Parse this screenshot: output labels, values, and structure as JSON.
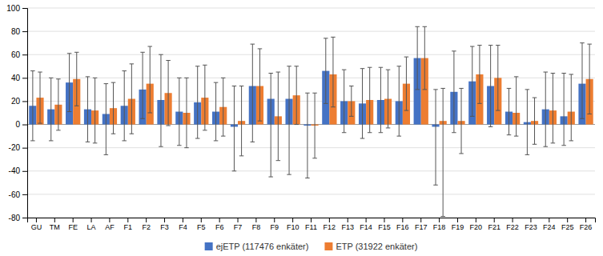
{
  "chart_data": {
    "type": "bar",
    "categories": [
      "GU",
      "TM",
      "FE",
      "LA",
      "AF",
      "F1",
      "F2",
      "F3",
      "F4",
      "F5",
      "F6",
      "F7",
      "F8",
      "F9",
      "F10",
      "F11",
      "F12",
      "F13",
      "F14",
      "F15",
      "F16",
      "F17",
      "F18",
      "F19",
      "F20",
      "F21",
      "F22",
      "F23",
      "F24",
      "F25",
      "F26"
    ],
    "series": [
      {
        "name": "ejETP (117476 enkäter)",
        "color": "#4472C4",
        "values": [
          16,
          13,
          36,
          13,
          9,
          16,
          30,
          21,
          11,
          19,
          11,
          -2,
          33,
          22,
          22,
          -1,
          46,
          20,
          18,
          21,
          20,
          57,
          -2,
          28,
          37,
          33,
          11,
          2,
          13,
          7,
          35
        ],
        "error_up": [
          30,
          27,
          25,
          28,
          26,
          30,
          32,
          39,
          29,
          31,
          25,
          35,
          36,
          22,
          28,
          28,
          28,
          27,
          30,
          28,
          30,
          27,
          32,
          35,
          30,
          35,
          20,
          28,
          32,
          37,
          35
        ],
        "error_down": [
          30,
          27,
          25,
          28,
          35,
          30,
          25,
          40,
          29,
          31,
          25,
          38,
          48,
          67,
          65,
          45,
          28,
          27,
          30,
          28,
          30,
          27,
          50,
          35,
          30,
          35,
          20,
          28,
          32,
          25,
          30
        ]
      },
      {
        "name": "ETP (31922 enkäter)",
        "color": "#ED7D31",
        "values": [
          23,
          17,
          39,
          12,
          14,
          22,
          35,
          27,
          10,
          23,
          15,
          3,
          33,
          7,
          25,
          -1,
          43,
          20,
          21,
          22,
          35,
          57,
          3,
          3,
          43,
          40,
          10,
          3,
          12,
          11,
          39
        ],
        "error_up": [
          22,
          22,
          23,
          28,
          22,
          30,
          32,
          28,
          30,
          28,
          25,
          30,
          32,
          38,
          25,
          28,
          32,
          13,
          28,
          25,
          23,
          27,
          28,
          28,
          25,
          28,
          31,
          20,
          32,
          32,
          30
        ],
        "error_down": [
          22,
          22,
          23,
          28,
          22,
          30,
          25,
          28,
          30,
          28,
          25,
          30,
          30,
          38,
          25,
          28,
          28,
          13,
          28,
          25,
          23,
          27,
          82,
          28,
          25,
          28,
          20,
          20,
          28,
          25,
          30
        ]
      }
    ],
    "ylim": [
      -80,
      100
    ],
    "yticks": [
      -80,
      -60,
      -40,
      -20,
      0,
      20,
      40,
      60,
      80,
      100
    ],
    "grid": true,
    "legend": "bottom"
  }
}
